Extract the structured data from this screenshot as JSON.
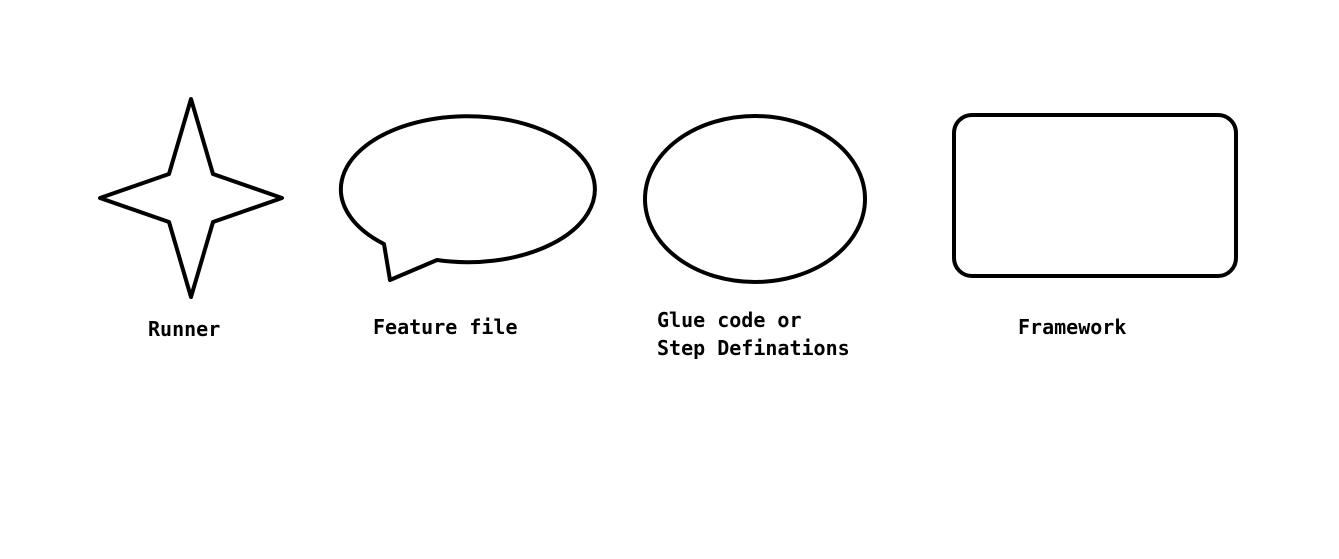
{
  "diagram": {
    "shapes": [
      {
        "kind": "star",
        "label": "Runner"
      },
      {
        "kind": "speech-bubble",
        "label": "Feature file"
      },
      {
        "kind": "ellipse",
        "label_lines": [
          "Glue code or",
          "Step Definations"
        ]
      },
      {
        "kind": "rounded-rectangle",
        "label": "Framework"
      }
    ],
    "colors": {
      "background": "#ffffff",
      "stroke": "#000000",
      "text": "#000000"
    }
  }
}
